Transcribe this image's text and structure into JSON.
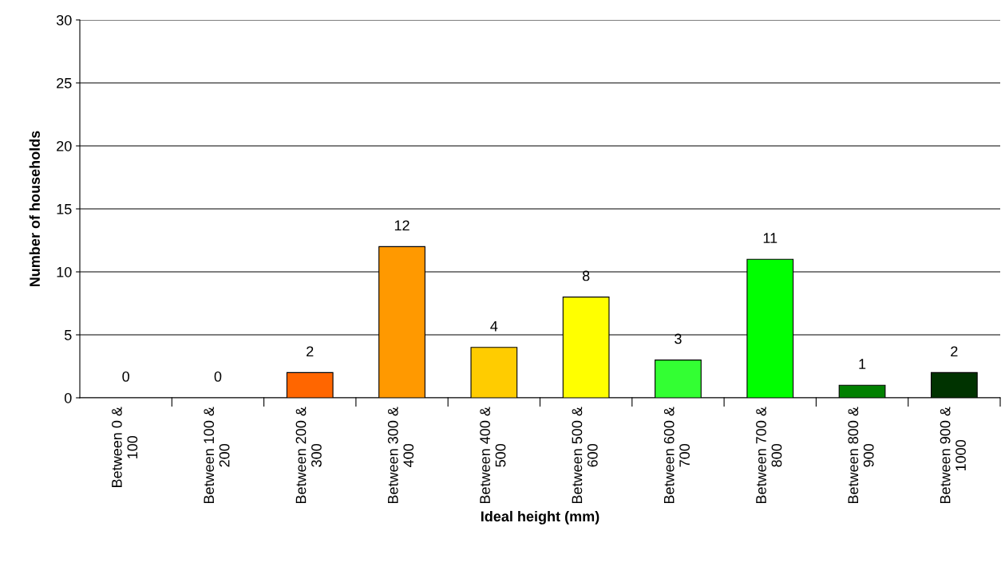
{
  "chart_data": {
    "type": "bar",
    "xlabel": "Ideal height (mm)",
    "ylabel": "Number of households",
    "categories": [
      "Between 0 &\n100",
      "Between 100 &\n200",
      "Between 200 &\n300",
      "Between 300 &\n400",
      "Between 400 &\n500",
      "Between 500 &\n600",
      "Between 600 &\n700",
      "Between 700 &\n800",
      "Between 800 &\n900",
      "Between 900 &\n1000"
    ],
    "values": [
      0,
      0,
      2,
      12,
      4,
      8,
      3,
      11,
      1,
      2
    ],
    "colors": [
      null,
      null,
      "#ff6600",
      "#ff9900",
      "#ffcc00",
      "#ffff00",
      "#33ff33",
      "#00ff00",
      "#008000",
      "#003300"
    ],
    "ylim": [
      0,
      30
    ],
    "yticks": [
      0,
      5,
      10,
      15,
      20,
      25,
      30
    ],
    "grid": "y",
    "data_labels": true
  }
}
